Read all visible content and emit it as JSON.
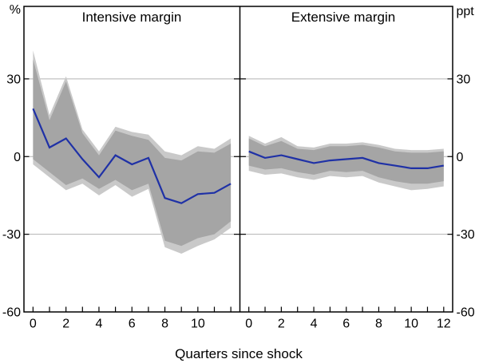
{
  "figure": {
    "xlabel": "Quarters since shock",
    "left_unit": "%",
    "right_unit": "ppt"
  },
  "axes": {
    "yticks": [
      30,
      0,
      -30,
      -60
    ],
    "gridlines": [
      30,
      0,
      -30
    ],
    "ylim": [
      -60,
      58
    ],
    "grid": "on",
    "legend": "none"
  },
  "chart_data": [
    {
      "type": "line",
      "title": "Intensive margin",
      "unit": "%",
      "xlim": [
        -0.55,
        12.55
      ],
      "ylim": [
        -60,
        58
      ],
      "x": [
        0,
        1,
        2,
        3,
        4,
        5,
        6,
        7,
        8,
        9,
        10,
        11,
        12
      ],
      "xtick_labels": [
        0,
        2,
        4,
        6,
        8,
        10
      ],
      "series": [
        {
          "name": "point estimate",
          "values": [
            18.5,
            3.5,
            7,
            -1,
            -8,
            0.5,
            -3,
            -0.5,
            -16,
            -18,
            -14.5,
            -14,
            -10.5
          ]
        }
      ],
      "band_inner": {
        "upper": [
          37.5,
          14,
          29,
          9,
          0.5,
          10,
          8,
          6.5,
          -0.5,
          -1.5,
          2,
          1.5,
          5
        ],
        "lower": [
          -1,
          -6,
          -11,
          -8.5,
          -12.5,
          -9,
          -13,
          -10.5,
          -32.5,
          -34.5,
          -31.5,
          -30,
          -25
        ]
      },
      "band_outer": {
        "upper": [
          41,
          16,
          31,
          10.5,
          2,
          11.5,
          9.5,
          8.5,
          2,
          0.5,
          4,
          3,
          7
        ],
        "lower": [
          -3,
          -8,
          -13,
          -10.5,
          -15,
          -11,
          -15.5,
          -12.5,
          -35,
          -37.5,
          -34.5,
          -32,
          -27.5
        ]
      }
    },
    {
      "type": "line",
      "title": "Extensive margin",
      "unit": "ppt",
      "xlim": [
        -0.55,
        12.55
      ],
      "ylim": [
        -60,
        58
      ],
      "x": [
        0,
        1,
        2,
        3,
        4,
        5,
        6,
        7,
        8,
        9,
        10,
        11,
        12
      ],
      "xtick_labels": [
        0,
        2,
        4,
        6,
        8,
        10,
        12
      ],
      "series": [
        {
          "name": "point estimate",
          "values": [
            2,
            -0.5,
            0.5,
            -1,
            -2.5,
            -1.5,
            -1,
            -0.5,
            -2.5,
            -3.5,
            -4.5,
            -4.5,
            -3.5
          ]
        }
      ],
      "band_inner": {
        "upper": [
          7,
          4,
          6,
          3,
          2.5,
          4,
          4,
          4.5,
          3.5,
          2,
          1.5,
          1.5,
          2
        ],
        "lower": [
          -3.5,
          -5,
          -4.5,
          -6,
          -7,
          -5.5,
          -6,
          -5.5,
          -8,
          -9.5,
          -10.5,
          -10.5,
          -9.5
        ]
      },
      "band_outer": {
        "upper": [
          8,
          5,
          7.5,
          4,
          3.5,
          5,
          5,
          5.5,
          4.5,
          3,
          2.5,
          2.5,
          3
        ],
        "lower": [
          -5.5,
          -7,
          -6.5,
          -8,
          -9,
          -7.5,
          -8,
          -7.5,
          -10,
          -11.5,
          -13,
          -12.5,
          -11.5
        ]
      }
    }
  ],
  "colors": {
    "line": "#1f31a6",
    "band_inner": "#a5a5a5",
    "band_outer": "#c9c9c9",
    "grid": "#b3b3b3",
    "axis": "#000000",
    "background": "#ffffff"
  }
}
